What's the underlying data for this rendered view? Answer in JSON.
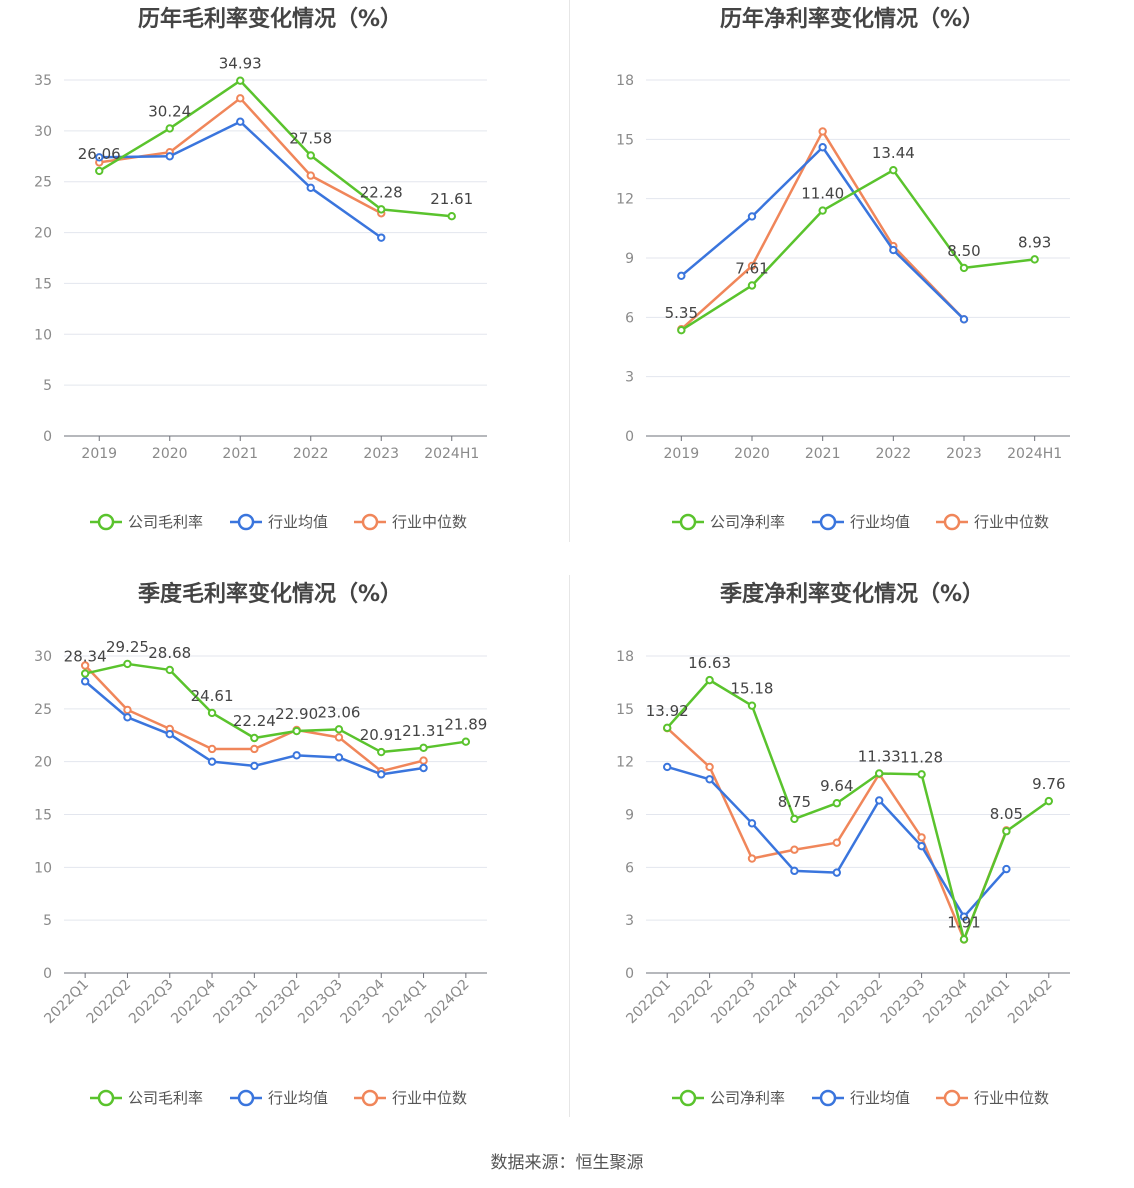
{
  "colors": {
    "company": "#5ac32d",
    "industry_avg": "#3a75dd",
    "industry_median": "#f0865a",
    "grid": "#e3e6ee",
    "axis": "#6e7079",
    "tick_text": "#8a8a8a",
    "title": "#444444",
    "label": "#444444"
  },
  "source_note": "数据来源：恒生聚源",
  "chart_data": [
    {
      "type": "line",
      "title": "历年毛利率变化情况（%）",
      "categories": [
        "2019",
        "2020",
        "2021",
        "2022",
        "2023",
        "2024H1"
      ],
      "ylim": [
        0,
        35
      ],
      "yticks": [
        0,
        5,
        10,
        15,
        20,
        25,
        30,
        35
      ],
      "grid": true,
      "legend_position": "bottom",
      "series": [
        {
          "name": "公司毛利率",
          "key": "company",
          "values": [
            26.06,
            30.24,
            34.93,
            27.58,
            22.28,
            21.61
          ],
          "labels": [
            "26.06",
            "30.24",
            "34.93",
            "27.58",
            "22.28",
            "21.61"
          ]
        },
        {
          "name": "行业均值",
          "key": "industry_avg",
          "values": [
            27.4,
            27.5,
            30.9,
            24.4,
            19.5,
            null
          ]
        },
        {
          "name": "行业中位数",
          "key": "industry_median",
          "values": [
            26.9,
            27.9,
            33.2,
            25.6,
            21.9,
            null
          ]
        }
      ]
    },
    {
      "type": "line",
      "title": "历年净利率变化情况（%）",
      "categories": [
        "2019",
        "2020",
        "2021",
        "2022",
        "2023",
        "2024H1"
      ],
      "ylim": [
        0,
        18
      ],
      "yticks": [
        0,
        3,
        6,
        9,
        12,
        15,
        18
      ],
      "grid": true,
      "legend_position": "bottom",
      "series": [
        {
          "name": "公司净利率",
          "key": "company",
          "values": [
            5.35,
            7.61,
            11.4,
            13.44,
            8.5,
            8.93
          ],
          "labels": [
            "5.35",
            "7.61",
            "11.40",
            "13.44",
            "8.50",
            "8.93"
          ]
        },
        {
          "name": "行业均值",
          "key": "industry_avg",
          "values": [
            8.1,
            11.1,
            14.6,
            9.4,
            5.9,
            null
          ]
        },
        {
          "name": "行业中位数",
          "key": "industry_median",
          "values": [
            5.4,
            8.6,
            15.4,
            9.6,
            5.9,
            null
          ]
        }
      ]
    },
    {
      "type": "line",
      "title": "季度毛利率变化情况（%）",
      "categories": [
        "2022Q1",
        "2022Q2",
        "2022Q3",
        "2022Q4",
        "2023Q1",
        "2023Q2",
        "2023Q3",
        "2023Q4",
        "2024Q1",
        "2024Q2"
      ],
      "ylim": [
        0,
        30
      ],
      "yticks": [
        0,
        5,
        10,
        15,
        20,
        25,
        30
      ],
      "grid": true,
      "legend_position": "bottom",
      "series": [
        {
          "name": "公司毛利率",
          "key": "company",
          "values": [
            28.34,
            29.25,
            28.68,
            24.61,
            22.24,
            22.9,
            23.06,
            20.91,
            21.31,
            21.89
          ],
          "labels": [
            "28.34",
            "29.25",
            "28.68",
            "24.61",
            "22.24",
            "22.90",
            "23.06",
            "20.91",
            "21.31",
            "21.89"
          ]
        },
        {
          "name": "行业均值",
          "key": "industry_avg",
          "values": [
            27.6,
            24.2,
            22.6,
            20.0,
            19.6,
            20.6,
            20.4,
            18.8,
            19.4,
            null
          ]
        },
        {
          "name": "行业中位数",
          "key": "industry_median",
          "values": [
            29.1,
            24.9,
            23.1,
            21.2,
            21.2,
            23.0,
            22.3,
            19.1,
            20.1,
            null
          ]
        }
      ]
    },
    {
      "type": "line",
      "title": "季度净利率变化情况（%）",
      "categories": [
        "2022Q1",
        "2022Q2",
        "2022Q3",
        "2022Q4",
        "2023Q1",
        "2023Q2",
        "2023Q3",
        "2023Q4",
        "2024Q1",
        "2024Q2"
      ],
      "ylim": [
        0,
        18
      ],
      "yticks": [
        0,
        3,
        6,
        9,
        12,
        15,
        18
      ],
      "grid": true,
      "legend_position": "bottom",
      "series": [
        {
          "name": "公司净利率",
          "key": "company",
          "values": [
            13.92,
            16.63,
            15.18,
            8.75,
            9.64,
            11.33,
            11.28,
            1.91,
            8.05,
            9.76
          ],
          "labels": [
            "13.92",
            "16.63",
            "15.18",
            "8.75",
            "9.64",
            "11.33",
            "11.28",
            "1.91",
            "8.05",
            "9.76"
          ]
        },
        {
          "name": "行业均值",
          "key": "industry_avg",
          "values": [
            11.7,
            11.0,
            8.5,
            5.8,
            5.7,
            9.8,
            7.2,
            3.2,
            5.9,
            null
          ]
        },
        {
          "name": "行业中位数",
          "key": "industry_median",
          "values": [
            13.9,
            11.7,
            6.5,
            7.0,
            7.4,
            11.3,
            7.7,
            1.9,
            8.1,
            null
          ]
        }
      ]
    }
  ]
}
